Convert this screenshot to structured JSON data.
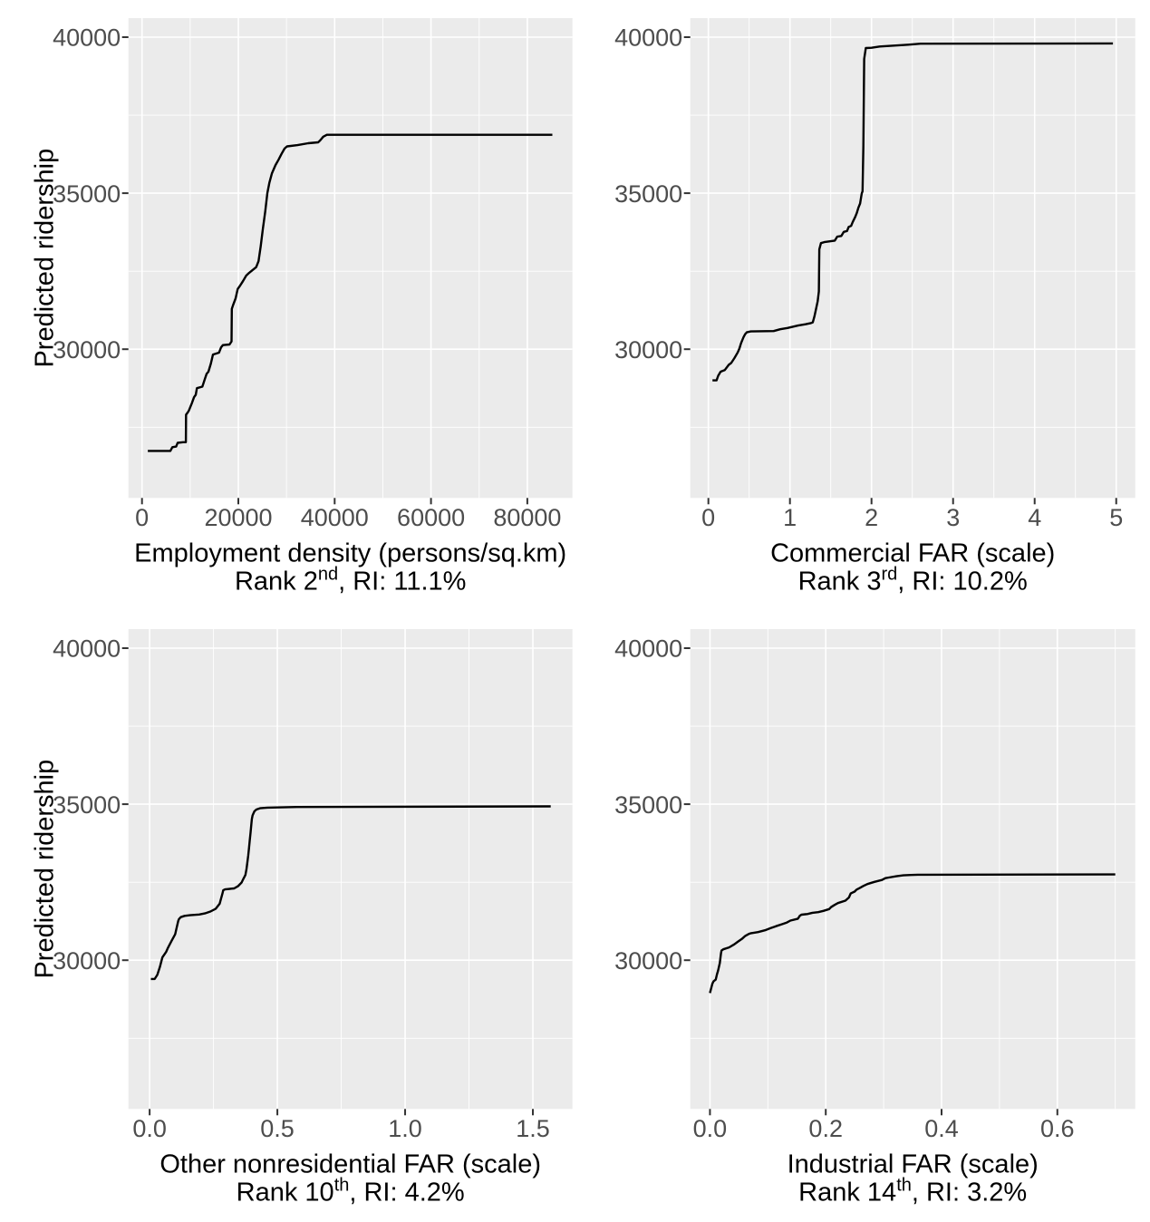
{
  "figure": {
    "background": "#FFFFFF",
    "panel_bg": "#EBEBEB",
    "grid_major_color": "#FFFFFF",
    "grid_minor_color": "#FFFFFF",
    "line_color": "#000000",
    "tick_mark_color": "#333333",
    "tick_label_color": "#4D4D4D",
    "title_color": "#000000",
    "y_axis_title": "Predicted ridership"
  },
  "chart_data": [
    {
      "type": "line",
      "title": "",
      "xlabel": "Employment density (persons/sq.km)",
      "subtitle": {
        "prefix": "Rank 2",
        "sup": "nd",
        "suffix": ", RI: 11.1%"
      },
      "ylabel": "Predicted ridership",
      "grid": true,
      "legend": "none",
      "xlim": [
        -2820,
        89370
      ],
      "ylim": [
        25233,
        40610
      ],
      "x_ticks": [
        0,
        20000,
        40000,
        60000,
        80000
      ],
      "x_tick_labels": [
        "0",
        "20000",
        "40000",
        "60000",
        "80000"
      ],
      "x_minor": [
        10000,
        30000,
        50000,
        70000
      ],
      "y_ticks": [
        30000,
        35000,
        40000
      ],
      "y_tick_labels": [
        "30000",
        "35000",
        "40000"
      ],
      "y_minor": [
        27500,
        32500,
        37500
      ],
      "x": [
        1200,
        5900,
        6300,
        7100,
        7400,
        8500,
        9100,
        9150,
        9700,
        10350,
        10800,
        11160,
        11400,
        12530,
        13040,
        13420,
        13790,
        14300,
        14740,
        16000,
        16430,
        16810,
        18180,
        18600,
        18650,
        18930,
        19440,
        19870,
        20380,
        21000,
        21640,
        22260,
        23710,
        24200,
        24650,
        25090,
        25590,
        26030,
        26460,
        26970,
        27720,
        28340,
        28980,
        29600,
        30110,
        32290,
        34500,
        36570,
        37000,
        37640,
        38390,
        85200
      ],
      "y": [
        26740,
        26740,
        26860,
        26880,
        27000,
        27020,
        27020,
        27900,
        28020,
        28270,
        28460,
        28540,
        28750,
        28800,
        29040,
        29210,
        29280,
        29540,
        29830,
        29890,
        30060,
        30130,
        30150,
        30250,
        31290,
        31420,
        31630,
        31930,
        32040,
        32190,
        32360,
        32450,
        32630,
        32820,
        33300,
        33840,
        34420,
        35000,
        35340,
        35630,
        35900,
        36070,
        36260,
        36430,
        36500,
        36540,
        36600,
        36630,
        36690,
        36810,
        36870,
        36870
      ]
    },
    {
      "type": "line",
      "title": "",
      "xlabel": "Commercial FAR (scale)",
      "subtitle": {
        "prefix": "Rank 3",
        "sup": "rd",
        "suffix": ", RI: 10.2%"
      },
      "ylabel": "",
      "grid": true,
      "legend": "none",
      "xlim": [
        -0.222,
        5.233
      ],
      "ylim": [
        25233,
        40610
      ],
      "x_ticks": [
        0,
        1,
        2,
        3,
        4,
        5
      ],
      "x_tick_labels": [
        "0",
        "1",
        "2",
        "3",
        "4",
        "5"
      ],
      "x_minor": [
        0.5,
        1.5,
        2.5,
        3.5,
        4.5
      ],
      "y_ticks": [
        30000,
        35000,
        40000
      ],
      "y_tick_labels": [
        "30000",
        "35000",
        "40000"
      ],
      "y_minor": [
        27500,
        32500,
        37500
      ],
      "x": [
        0.05,
        0.1,
        0.12,
        0.15,
        0.2,
        0.25,
        0.28,
        0.32,
        0.36,
        0.38,
        0.4,
        0.43,
        0.45,
        0.47,
        0.52,
        0.8,
        0.88,
        0.97,
        1.1,
        1.19,
        1.25,
        1.28,
        1.3,
        1.32,
        1.34,
        1.355,
        1.36,
        1.38,
        1.42,
        1.55,
        1.58,
        1.63,
        1.66,
        1.7,
        1.72,
        1.75,
        1.77,
        1.8,
        1.82,
        1.84,
        1.86,
        1.88,
        1.89,
        1.9,
        1.91,
        1.93,
        2.0,
        2.1,
        2.45,
        2.6,
        4.96
      ],
      "y": [
        29000,
        29000,
        29150,
        29280,
        29330,
        29500,
        29560,
        29720,
        29900,
        30020,
        30190,
        30380,
        30480,
        30540,
        30570,
        30580,
        30640,
        30680,
        30760,
        30800,
        30830,
        30860,
        31050,
        31290,
        31540,
        31850,
        33200,
        33400,
        33430,
        33480,
        33610,
        33630,
        33760,
        33790,
        33920,
        33950,
        34080,
        34240,
        34370,
        34540,
        34670,
        34990,
        35060,
        36500,
        39300,
        39650,
        39660,
        39700,
        39760,
        39790,
        39800
      ]
    },
    {
      "type": "line",
      "title": "",
      "xlabel": "Other nonresidential FAR (scale)",
      "subtitle": {
        "prefix": "Rank 10",
        "sup": "th",
        "suffix": ", RI: 4.2%"
      },
      "ylabel": "Predicted ridership",
      "grid": true,
      "legend": "none",
      "xlim": [
        -0.083,
        1.655
      ],
      "ylim": [
        25233,
        40610
      ],
      "x_ticks": [
        0,
        0.5,
        1.0,
        1.5
      ],
      "x_tick_labels": [
        "0.0",
        "0.5",
        "1.0",
        "1.5"
      ],
      "x_minor": [
        0.25,
        0.75,
        1.25
      ],
      "y_ticks": [
        30000,
        35000,
        40000
      ],
      "y_tick_labels": [
        "30000",
        "35000",
        "40000"
      ],
      "y_minor": [
        27500,
        32500,
        37500
      ],
      "x": [
        0.005,
        0.02,
        0.03,
        0.04,
        0.05,
        0.065,
        0.072,
        0.086,
        0.1,
        0.105,
        0.112,
        0.115,
        0.122,
        0.137,
        0.158,
        0.194,
        0.216,
        0.238,
        0.259,
        0.274,
        0.278,
        0.285,
        0.288,
        0.295,
        0.331,
        0.346,
        0.36,
        0.367,
        0.375,
        0.379,
        0.382,
        0.386,
        0.389,
        0.392,
        0.395,
        0.398,
        0.4,
        0.403,
        0.41,
        0.418,
        0.432,
        0.461,
        0.576,
        1.57
      ],
      "y": [
        29400,
        29400,
        29530,
        29780,
        30090,
        30270,
        30400,
        30620,
        30830,
        31010,
        31260,
        31320,
        31380,
        31420,
        31440,
        31465,
        31500,
        31560,
        31650,
        31810,
        31930,
        32140,
        32240,
        32270,
        32300,
        32370,
        32490,
        32610,
        32730,
        32920,
        33100,
        33350,
        33600,
        33840,
        34090,
        34340,
        34520,
        34640,
        34770,
        34830,
        34870,
        34890,
        34910,
        34930
      ]
    },
    {
      "type": "line",
      "title": "",
      "xlabel": "Industrial FAR (scale)",
      "subtitle": {
        "prefix": "Rank 14",
        "sup": "th",
        "suffix": ", RI: 3.2%"
      },
      "ylabel": "",
      "grid": true,
      "legend": "none",
      "xlim": [
        -0.034,
        0.7345
      ],
      "ylim": [
        25233,
        40610
      ],
      "x_ticks": [
        0,
        0.2,
        0.4,
        0.6
      ],
      "x_tick_labels": [
        "0.0",
        "0.2",
        "0.4",
        "0.6"
      ],
      "x_minor": [
        0.1,
        0.3,
        0.5,
        0.7
      ],
      "y_ticks": [
        30000,
        35000,
        40000
      ],
      "y_tick_labels": [
        "30000",
        "35000",
        "40000"
      ],
      "y_minor": [
        27500,
        32500,
        37500
      ],
      "x": [
        0.0,
        0.004,
        0.006,
        0.01,
        0.012,
        0.014,
        0.017,
        0.019,
        0.02,
        0.023,
        0.033,
        0.042,
        0.048,
        0.055,
        0.061,
        0.067,
        0.07,
        0.083,
        0.095,
        0.105,
        0.114,
        0.124,
        0.133,
        0.139,
        0.152,
        0.155,
        0.158,
        0.168,
        0.177,
        0.187,
        0.196,
        0.206,
        0.209,
        0.215,
        0.221,
        0.234,
        0.24,
        0.243,
        0.25,
        0.253,
        0.259,
        0.265,
        0.272,
        0.284,
        0.297,
        0.303,
        0.309,
        0.322,
        0.334,
        0.347,
        0.359,
        0.7
      ],
      "y": [
        28950,
        29240,
        29320,
        29380,
        29540,
        29670,
        29910,
        30220,
        30310,
        30350,
        30410,
        30510,
        30590,
        30680,
        30780,
        30840,
        30860,
        30900,
        30960,
        31030,
        31090,
        31150,
        31210,
        31270,
        31330,
        31420,
        31460,
        31480,
        31520,
        31540,
        31580,
        31640,
        31700,
        31770,
        31830,
        31910,
        32010,
        32140,
        32200,
        32260,
        32320,
        32380,
        32440,
        32510,
        32570,
        32630,
        32650,
        32690,
        32720,
        32730,
        32740,
        32750
      ]
    }
  ]
}
